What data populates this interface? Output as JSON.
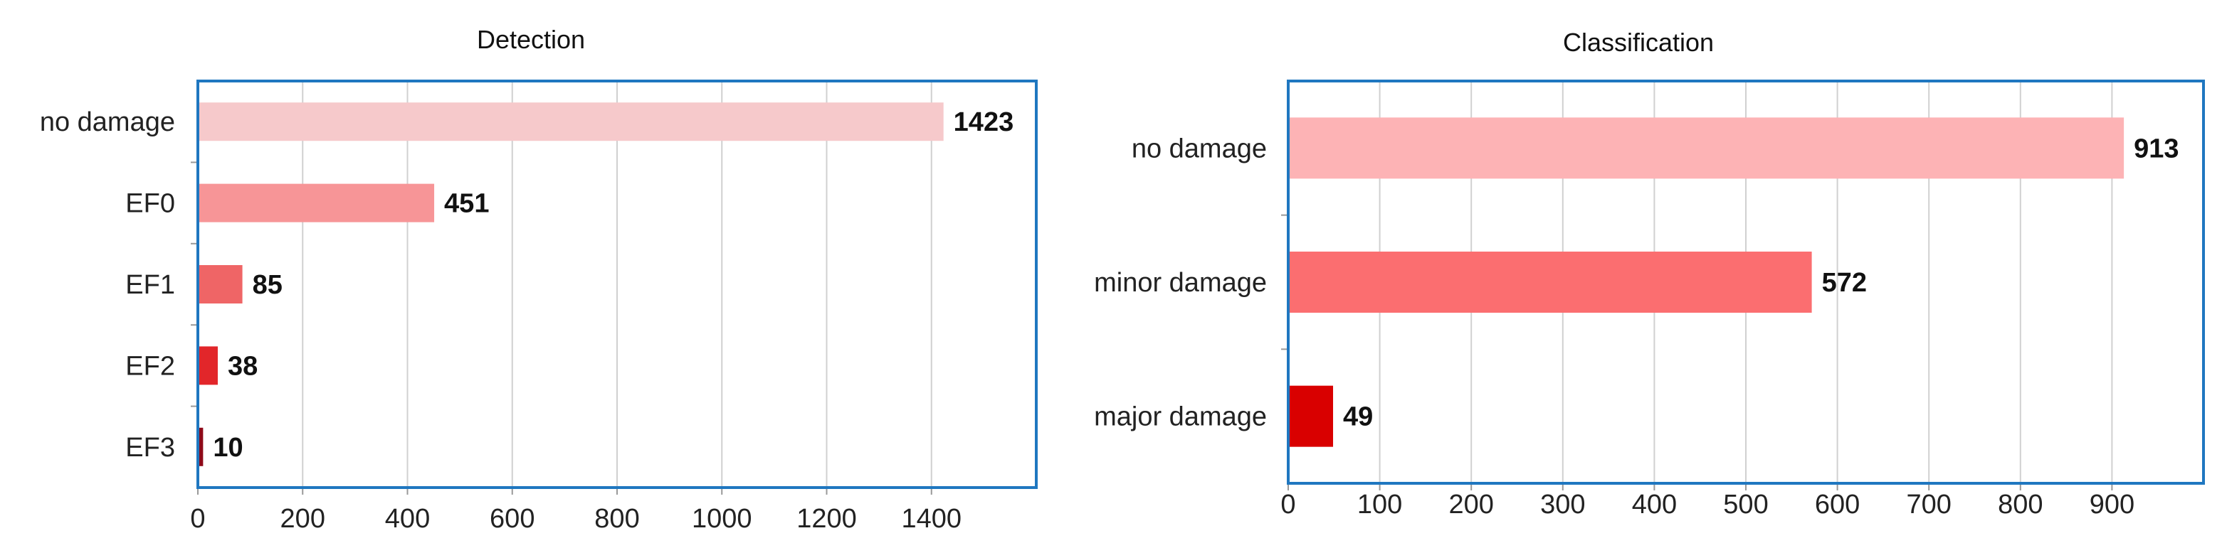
{
  "chart_data": [
    {
      "type": "bar",
      "orientation": "horizontal",
      "title": "Detection",
      "xlabel": "",
      "ylabel": "",
      "categories": [
        "no damage",
        "EF0",
        "EF1",
        "EF2",
        "EF3"
      ],
      "values": [
        1423,
        451,
        85,
        38,
        10
      ],
      "value_labels": [
        "1423",
        "451",
        "85",
        "38",
        "10"
      ],
      "bar_colors": [
        "#f6c9cb",
        "#f79597",
        "#ef6566",
        "#e2262a",
        "#8e0a1a"
      ],
      "xlim": [
        0,
        1600
      ],
      "xticks": [
        0,
        200,
        400,
        600,
        800,
        1000,
        1200,
        1400
      ],
      "xtick_labels": [
        "0",
        "200",
        "400",
        "600",
        "800",
        "1000",
        "1200",
        "1400"
      ],
      "grid": true,
      "legend": "none"
    },
    {
      "type": "bar",
      "orientation": "horizontal",
      "title": "Classification",
      "xlabel": "",
      "ylabel": "",
      "categories": [
        "no damage",
        "minor damage",
        "major damage"
      ],
      "values": [
        913,
        572,
        49
      ],
      "value_labels": [
        "913",
        "572",
        "49"
      ],
      "bar_colors": [
        "#fdb3b5",
        "#fb6e70",
        "#d90000"
      ],
      "xlim": [
        0,
        1000
      ],
      "xticks": [
        0,
        100,
        200,
        300,
        400,
        500,
        600,
        700,
        800,
        900
      ],
      "xtick_labels": [
        "0",
        "100",
        "200",
        "300",
        "400",
        "500",
        "600",
        "700",
        "800",
        "900"
      ],
      "grid": true,
      "legend": "none"
    }
  ],
  "colors": {
    "frame": "#1f77c0",
    "grid": "#d0d0d0",
    "axis": "#999999"
  }
}
